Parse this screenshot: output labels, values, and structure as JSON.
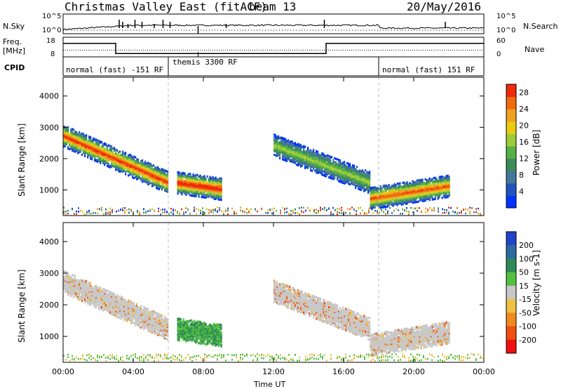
{
  "header": {
    "site": "Christmas Valley East (fitACF)",
    "beam": "beam 13",
    "date": "20/May/2016"
  },
  "strip_labels": {
    "nsky": "N.Sky",
    "nsearch": "N.Search",
    "freq": "Freq.",
    "mhz": "[MHz]",
    "nave": "Nave",
    "cpid": "CPID",
    "noise_hi": "10^5",
    "noise_lo": "10^0",
    "freq_hi": "18",
    "freq_lo": "8",
    "nave_hi": "60",
    "nave_lo": "0"
  },
  "cpid_segments": [
    {
      "label": "normal (fast) -151 RF",
      "start": 0.0
    },
    {
      "label": "themis 3300 RF",
      "start": 6.0
    },
    {
      "label": "normal (fast) 151 RF",
      "start": 18.0
    }
  ],
  "colors": {
    "power": [
      "#0033ff",
      "#2255bb",
      "#447799",
      "#3c8c5a",
      "#55b046",
      "#9ccc3c",
      "#e8cc10",
      "#f0a020",
      "#f06a10",
      "#f02a0c"
    ],
    "velocity_pos": [
      "#2244cc",
      "#2c6aa0",
      "#2e8b57",
      "#55c040"
    ],
    "velocity_neg": [
      "#c8c8c8",
      "#f0c040",
      "#f08a20",
      "#f05010",
      "#f01010"
    ]
  },
  "chart_data": [
    {
      "type": "heatmap",
      "title": "",
      "xlabel": "Time UT",
      "ylabel": "Slant Range [km]",
      "xlim": [
        0,
        24
      ],
      "ylim": [
        180,
        4600
      ],
      "xticks": [
        "00:00",
        "04:00",
        "08:00",
        "12:00",
        "16:00",
        "20:00",
        "00:00"
      ],
      "yticks": [
        1000,
        2000,
        3000,
        4000
      ],
      "colorbar": {
        "label": "Power [dB]",
        "ticks": [
          4,
          8,
          12,
          16,
          20,
          24,
          28
        ],
        "range": [
          0,
          30
        ]
      },
      "features": [
        {
          "name": "band-1",
          "t_start": 0.0,
          "t_end": 6.0,
          "range_start": 2700,
          "range_end": 1200,
          "power_peak": 28
        },
        {
          "name": "band-2",
          "t_start": 6.5,
          "t_end": 9.0,
          "range_start": 1200,
          "range_end": 1000,
          "power_peak": 30
        },
        {
          "name": "band-3",
          "t_start": 12.0,
          "t_end": 17.5,
          "range_start": 2400,
          "range_end": 1200,
          "power_peak": 16
        },
        {
          "name": "band-4",
          "t_start": 17.5,
          "t_end": 22.0,
          "range_start": 700,
          "range_end": 1100,
          "power_peak": 26
        }
      ]
    },
    {
      "type": "heatmap",
      "title": "",
      "xlabel": "Time UT",
      "ylabel": "Slant Range [km]",
      "xlim": [
        0,
        24
      ],
      "ylim": [
        180,
        4600
      ],
      "xticks": [
        "00:00",
        "04:00",
        "08:00",
        "12:00",
        "16:00",
        "20:00",
        "00:00"
      ],
      "yticks": [
        1000,
        2000,
        3000,
        4000
      ],
      "colorbar": {
        "label": "Velocity [m s-1]",
        "ticks": [
          "200",
          "100",
          "50",
          "15",
          "-15",
          "-50",
          "-100",
          "-200"
        ]
      }
    }
  ]
}
